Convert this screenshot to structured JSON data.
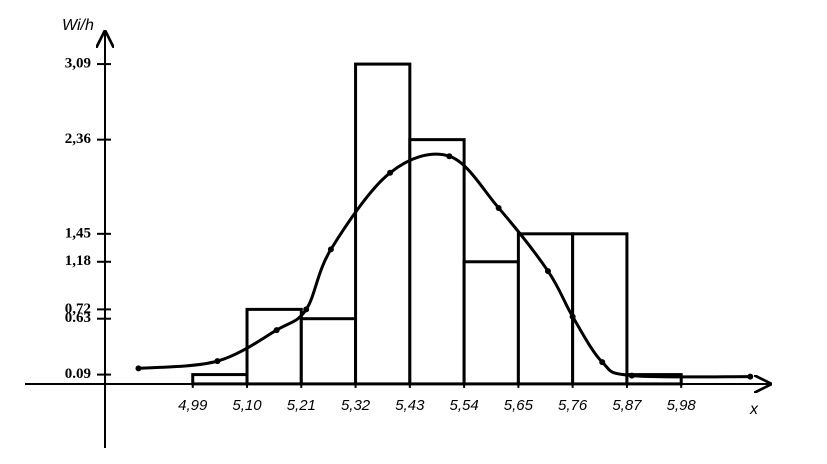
{
  "chart_data": {
    "type": "histogram",
    "x_label": "x",
    "y_label": "Wi/h",
    "bins": [
      4.99,
      5.1,
      5.21,
      5.32,
      5.43,
      5.54,
      5.65,
      5.76,
      5.87,
      5.98
    ],
    "values": [
      0.09,
      0.72,
      0.63,
      3.09,
      2.36,
      1.18,
      1.45,
      1.45,
      0.09
    ],
    "color": "#ffffff",
    "curve": {
      "x": [
        4.88,
        5.04,
        5.16,
        5.22,
        5.27,
        5.39,
        5.51,
        5.61,
        5.71,
        5.76,
        5.82,
        5.88,
        6.12
      ],
      "values": [
        0.15,
        0.22,
        0.52,
        0.72,
        1.3,
        2.04,
        2.2,
        1.7,
        1.09,
        0.65,
        0.21,
        0.08,
        0.07
      ],
      "color": "#000000"
    },
    "xlim": [
      4.65,
      6.16
    ],
    "ylim": [
      -0.6,
      3.4
    ],
    "xticks": [
      {
        "value": 4.99,
        "label": "4,99"
      },
      {
        "value": 5.1,
        "label": "5,10"
      },
      {
        "value": 5.21,
        "label": "5,21"
      },
      {
        "value": 5.32,
        "label": "5,32"
      },
      {
        "value": 5.43,
        "label": "5,43"
      },
      {
        "value": 5.54,
        "label": "5,54"
      },
      {
        "value": 5.65,
        "label": "5,65"
      },
      {
        "value": 5.76,
        "label": "5,76"
      },
      {
        "value": 5.87,
        "label": "5,87"
      },
      {
        "value": 5.98,
        "label": "5,98"
      }
    ],
    "yticks": [
      {
        "value": 3.09,
        "label": "3,09"
      },
      {
        "value": 2.36,
        "label": "2,36"
      },
      {
        "value": 1.45,
        "label": "1,45"
      },
      {
        "value": 1.18,
        "label": "1,18"
      },
      {
        "value": 0.72,
        "label": "0,72"
      },
      0.63,
      0.09
    ],
    "grid": false
  }
}
